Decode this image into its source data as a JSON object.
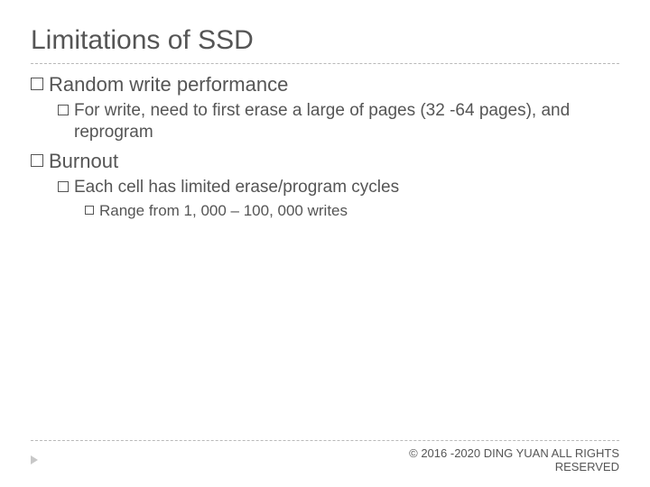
{
  "title": "Limitations of SSD",
  "bullets": {
    "l1a": "Random write performance",
    "l2a": "For write, need to first erase a large of pages (32 -64 pages), and reprogram",
    "l1b": "Burnout",
    "l2b": "Each cell has limited erase/program cycles",
    "l3a": "Range from 1, 000 – 100, 000 writes"
  },
  "footer": {
    "copyright_line1": "© 2016 -2020 DING YUAN ALL RIGHTS",
    "copyright_line2": "RESERVED"
  },
  "colors": {
    "text": "#555555",
    "divider": "#b9b9b9",
    "background": "#ffffff",
    "footer_icon": "#c8c8c8"
  },
  "fontsizes": {
    "title": 30,
    "l1": 22,
    "l2": 19,
    "l3": 17,
    "footer": 13
  }
}
